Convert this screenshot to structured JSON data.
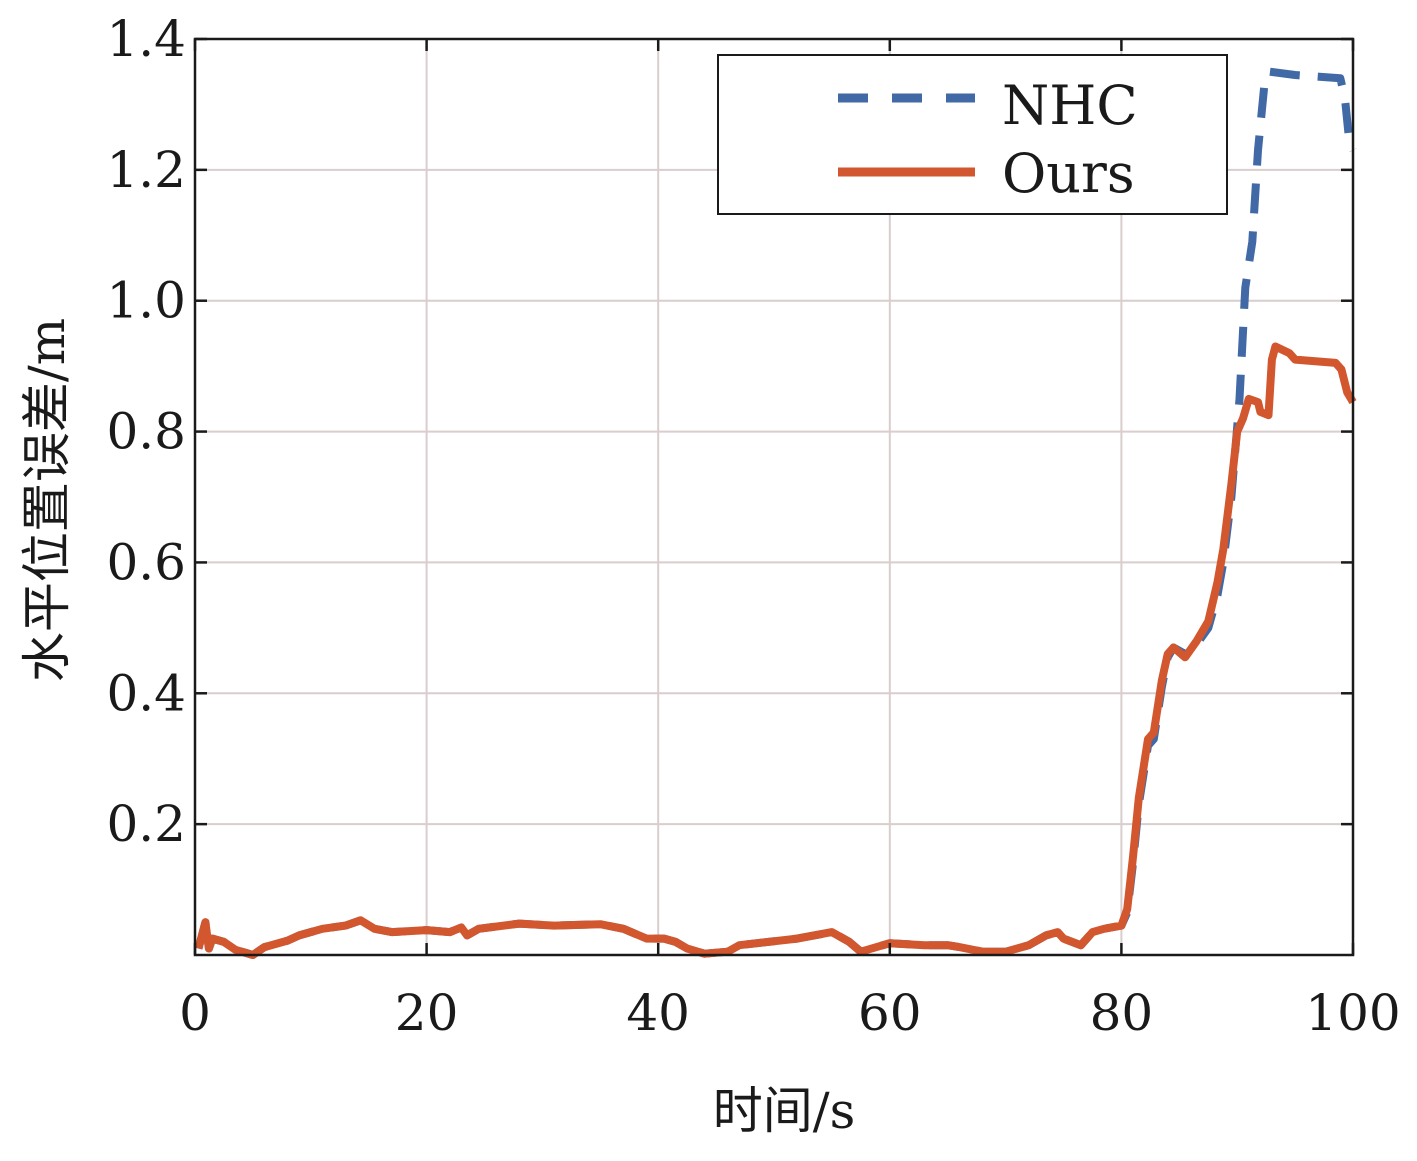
{
  "chart_data": {
    "type": "line",
    "title": "",
    "xlabel": "时间/s",
    "ylabel": "水平位置误差/m",
    "xlim": [
      0,
      100
    ],
    "ylim": [
      0,
      1.4
    ],
    "xticks": [
      0,
      20,
      40,
      60,
      80,
      100
    ],
    "xtick_labels": [
      "0",
      "20",
      "40",
      "60",
      "80",
      "100"
    ],
    "yticks": [
      0.2,
      0.4,
      0.6,
      0.8,
      1.0,
      1.2,
      1.4
    ],
    "ytick_labels": [
      "0.2",
      "0.4",
      "0.6",
      "0.8",
      "1.0",
      "1.2",
      "1.4"
    ],
    "grid": true,
    "legend_position": "top-right",
    "series": [
      {
        "name": "NHC",
        "color": "#4169a6",
        "style": "dashed",
        "x": [
          0.3,
          0.9,
          1.2,
          1.5,
          2.5,
          3.5,
          5,
          6,
          8,
          9,
          11,
          13,
          14.3,
          15.5,
          17,
          20,
          22,
          23,
          23.5,
          24.5,
          28,
          31,
          35,
          37,
          39,
          40.5,
          41.5,
          42.5,
          44,
          46,
          47,
          52,
          55,
          56.5,
          57.5,
          60,
          63,
          65,
          66,
          68,
          70,
          72,
          73.5,
          74.5,
          75,
          76.5,
          77.5,
          78.5,
          80,
          80.5,
          81,
          81.5,
          82.3,
          82.8,
          83.5,
          84,
          84.5,
          85.5,
          86.5,
          87.5,
          88.3,
          88.8,
          89.5,
          90.2,
          90.7,
          91.3,
          91.8,
          92.4,
          92.8,
          95,
          98.9,
          99.3,
          99.7,
          100
        ],
        "y": [
          0.01,
          0.05,
          0.01,
          0.025,
          0.02,
          0.008,
          0.0,
          0.012,
          0.022,
          0.03,
          0.04,
          0.045,
          0.053,
          0.04,
          0.035,
          0.038,
          0.035,
          0.042,
          0.03,
          0.04,
          0.048,
          0.045,
          0.047,
          0.04,
          0.025,
          0.025,
          0.02,
          0.01,
          0.002,
          0.005,
          0.015,
          0.025,
          0.035,
          0.02,
          0.005,
          0.018,
          0.015,
          0.015,
          0.012,
          0.005,
          0.005,
          0.015,
          0.03,
          0.035,
          0.025,
          0.015,
          0.035,
          0.04,
          0.045,
          0.065,
          0.14,
          0.23,
          0.32,
          0.33,
          0.41,
          0.455,
          0.47,
          0.46,
          0.475,
          0.5,
          0.55,
          0.6,
          0.7,
          0.85,
          1.02,
          1.09,
          1.23,
          1.34,
          1.35,
          1.345,
          1.34,
          1.31,
          1.24,
          1.23
        ]
      },
      {
        "name": "Ours",
        "color": "#d2572e",
        "style": "solid",
        "x": [
          0.3,
          0.9,
          1.2,
          1.5,
          2.5,
          3.5,
          5,
          6,
          8,
          9,
          11,
          13,
          14.3,
          15.5,
          17,
          20,
          22,
          23,
          23.5,
          24.5,
          28,
          31,
          35,
          37,
          39,
          40.5,
          41.5,
          42.5,
          44,
          46,
          47,
          52,
          55,
          56.5,
          57.5,
          60,
          63,
          65,
          66,
          68,
          70,
          72,
          73.5,
          74.5,
          75,
          76.5,
          77.5,
          78.5,
          80,
          80.5,
          81,
          81.5,
          82.3,
          82.8,
          83.5,
          84,
          84.5,
          85.5,
          86.5,
          87.5,
          88.3,
          88.8,
          89.5,
          90,
          90.5,
          91,
          91.8,
          92,
          92.7,
          93,
          93.3,
          94.5,
          95,
          98.5,
          99,
          99.5,
          100
        ],
        "y": [
          0.01,
          0.05,
          0.01,
          0.025,
          0.02,
          0.008,
          0.0,
          0.012,
          0.022,
          0.03,
          0.04,
          0.045,
          0.053,
          0.04,
          0.035,
          0.038,
          0.035,
          0.042,
          0.03,
          0.04,
          0.048,
          0.045,
          0.047,
          0.04,
          0.025,
          0.025,
          0.02,
          0.01,
          0.002,
          0.005,
          0.015,
          0.025,
          0.035,
          0.02,
          0.005,
          0.018,
          0.015,
          0.015,
          0.012,
          0.005,
          0.005,
          0.015,
          0.03,
          0.035,
          0.025,
          0.015,
          0.035,
          0.04,
          0.045,
          0.07,
          0.15,
          0.24,
          0.33,
          0.34,
          0.42,
          0.46,
          0.47,
          0.455,
          0.48,
          0.51,
          0.57,
          0.62,
          0.72,
          0.8,
          0.82,
          0.85,
          0.845,
          0.83,
          0.825,
          0.91,
          0.93,
          0.92,
          0.91,
          0.905,
          0.895,
          0.86,
          0.845
        ]
      }
    ]
  }
}
